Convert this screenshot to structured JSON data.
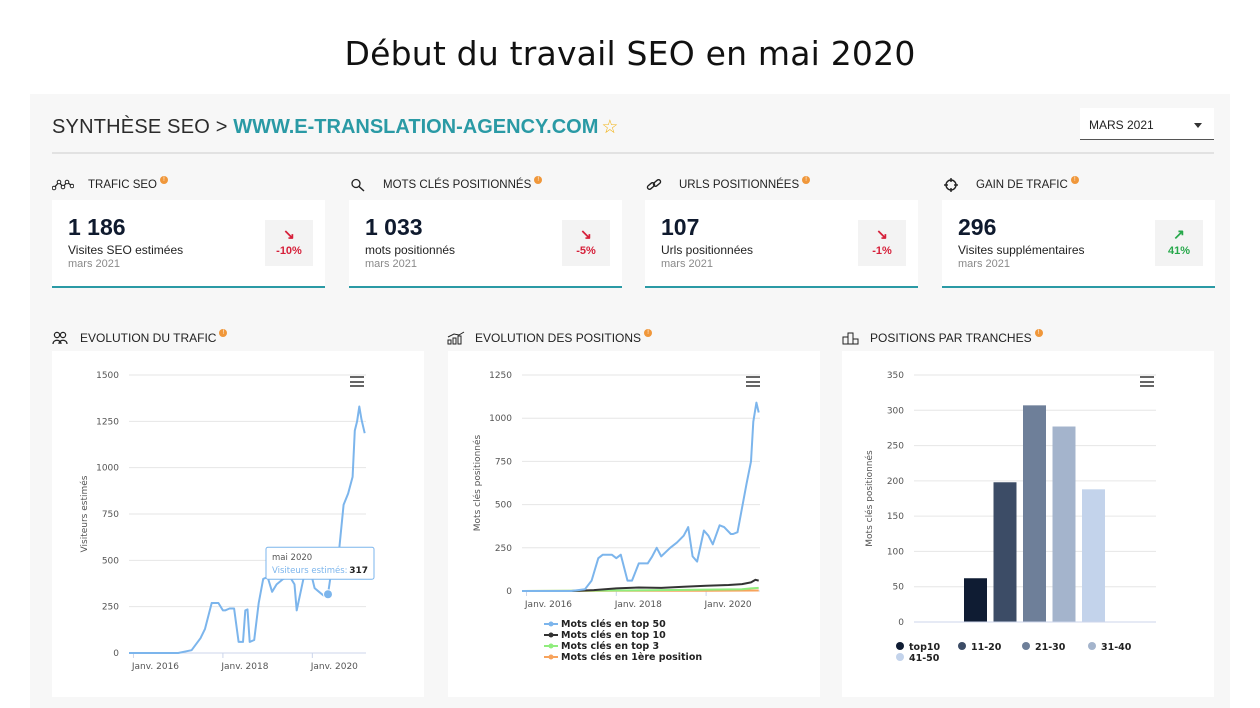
{
  "slide_title": "Début du travail SEO en mai 2020",
  "header": {
    "prefix": "SYNTHÈSE SEO >",
    "site": "WWW.E-TRANSLATION-AGENCY.COM",
    "star": "☆",
    "period_select": "MARS 2021"
  },
  "kpis": [
    {
      "label": "TRAFIC SEO",
      "icon": "graph-dots-icon",
      "value": "1 186",
      "sub": "Visites SEO estimées",
      "date": "mars 2021",
      "trend_arrow": "↘",
      "trend": "-10%",
      "direction": "down"
    },
    {
      "label": "MOTS CLÉS POSITIONNÉS",
      "icon": "search-icon",
      "value": "1 033",
      "sub": "mots positionnés",
      "date": "mars 2021",
      "trend_arrow": "↘",
      "trend": "-5%",
      "direction": "down"
    },
    {
      "label": "URLS POSITIONNÉES",
      "icon": "link-icon",
      "value": "107",
      "sub": "Urls positionnées",
      "date": "mars 2021",
      "trend_arrow": "↘",
      "trend": "-1%",
      "direction": "down"
    },
    {
      "label": "GAIN DE TRAFIC",
      "icon": "target-icon",
      "value": "296",
      "sub": "Visites supplémentaires",
      "date": "mars 2021",
      "trend_arrow": "↗",
      "trend": "41%",
      "direction": "up"
    }
  ],
  "sections": {
    "traffic": "EVOLUTION DU TRAFIC",
    "positions": "EVOLUTION DES POSITIONS",
    "tranches": "POSITIONS PAR TRANCHES"
  },
  "colors": {
    "accent": "#2a9aa5",
    "down": "#d6203a",
    "up": "#26a84a",
    "info": "#f0973a",
    "line": "#7cb5ec"
  },
  "chart_data": [
    {
      "type": "line",
      "ylabel": "Visiteurs estimés",
      "ylim": [
        0,
        1500
      ],
      "yticks": [
        0,
        250,
        500,
        750,
        1000,
        1250,
        1500
      ],
      "xticks": [
        "Janv. 2016",
        "Janv. 2018",
        "Janv. 2020"
      ],
      "x_range": [
        2015.9,
        2021.2
      ],
      "series": [
        {
          "x": [
            2015.9,
            2016.5,
            2017.0,
            2017.3,
            2017.5,
            2017.6,
            2017.75,
            2017.9,
            2018.0,
            2018.05,
            2018.15,
            2018.25,
            2018.35,
            2018.45,
            2018.5,
            2018.55,
            2018.6,
            2018.7,
            2018.8,
            2018.9,
            2019.0,
            2019.1,
            2019.2,
            2019.35,
            2019.5,
            2019.6,
            2019.65,
            2019.8,
            2019.95,
            2020.05,
            2020.15,
            2020.25,
            2020.35,
            2020.4,
            2020.5,
            2020.6,
            2020.7,
            2020.8,
            2020.9,
            2020.95,
            2021.0,
            2021.05,
            2021.1,
            2021.17
          ],
          "values": [
            0,
            0,
            0,
            15,
            80,
            130,
            270,
            270,
            230,
            230,
            240,
            240,
            60,
            60,
            230,
            235,
            60,
            70,
            270,
            400,
            410,
            330,
            370,
            400,
            410,
            370,
            230,
            400,
            450,
            350,
            330,
            310,
            317,
            400,
            500,
            560,
            800,
            860,
            950,
            1200,
            1250,
            1330,
            1260,
            1186
          ]
        }
      ],
      "tooltip": {
        "title": "mai 2020",
        "series": "Visiteurs estimés",
        "value": "317",
        "x": 2020.35,
        "y": 317
      }
    },
    {
      "type": "line",
      "ylabel": "Mots clés positionnés",
      "ylim": [
        0,
        1250
      ],
      "yticks": [
        0,
        250,
        500,
        750,
        1000,
        1250
      ],
      "xticks": [
        "Janv. 2016",
        "Janv. 2018",
        "Janv. 2020"
      ],
      "x_range": [
        2015.9,
        2021.2
      ],
      "series": [
        {
          "name": "Mots clés en top 50",
          "color": "#7cb5ec",
          "x": [
            2015.9,
            2017.0,
            2017.3,
            2017.45,
            2017.6,
            2017.7,
            2017.9,
            2018.0,
            2018.1,
            2018.25,
            2018.35,
            2018.5,
            2018.7,
            2018.8,
            2018.9,
            2019.0,
            2019.2,
            2019.35,
            2019.5,
            2019.6,
            2019.7,
            2019.8,
            2019.95,
            2020.05,
            2020.15,
            2020.3,
            2020.4,
            2020.55,
            2020.6,
            2020.7,
            2020.8,
            2020.9,
            2021.0,
            2021.05,
            2021.12,
            2021.17
          ],
          "values": [
            0,
            0,
            10,
            60,
            190,
            210,
            210,
            190,
            210,
            60,
            60,
            160,
            160,
            200,
            250,
            200,
            250,
            280,
            320,
            370,
            200,
            170,
            350,
            320,
            270,
            380,
            370,
            330,
            330,
            340,
            480,
            620,
            750,
            980,
            1090,
            1033
          ]
        },
        {
          "name": "Mots clés en top 10",
          "color": "#333333",
          "x": [
            2015.9,
            2017.0,
            2017.5,
            2018.0,
            2018.5,
            2019.0,
            2019.5,
            2020.0,
            2020.5,
            2020.8,
            2021.0,
            2021.1,
            2021.17
          ],
          "values": [
            0,
            0,
            5,
            15,
            20,
            18,
            25,
            30,
            35,
            40,
            50,
            65,
            60
          ]
        },
        {
          "name": "Mots clés en top 3",
          "color": "#90ed7d",
          "x": [
            2015.9,
            2018.0,
            2019.0,
            2020.0,
            2020.8,
            2021.0,
            2021.17
          ],
          "values": [
            0,
            3,
            5,
            8,
            10,
            15,
            18
          ]
        },
        {
          "name": "Mots clés en 1ère position",
          "color": "#f7a35c",
          "x": [
            2015.9,
            2018.0,
            2020.0,
            2021.17
          ],
          "values": [
            0,
            1,
            2,
            3
          ]
        }
      ]
    },
    {
      "type": "bar",
      "ylabel": "Mots clés positionnés",
      "ylim": [
        0,
        350
      ],
      "yticks": [
        0,
        50,
        100,
        150,
        200,
        250,
        300,
        350
      ],
      "categories": [
        "top10",
        "11-20",
        "21-30",
        "31-40",
        "41-50"
      ],
      "values": [
        62,
        198,
        307,
        277,
        188
      ],
      "colors": [
        "#0f1c33",
        "#3c4c66",
        "#6e7f99",
        "#a4b4cc",
        "#c3d3eb"
      ]
    }
  ]
}
